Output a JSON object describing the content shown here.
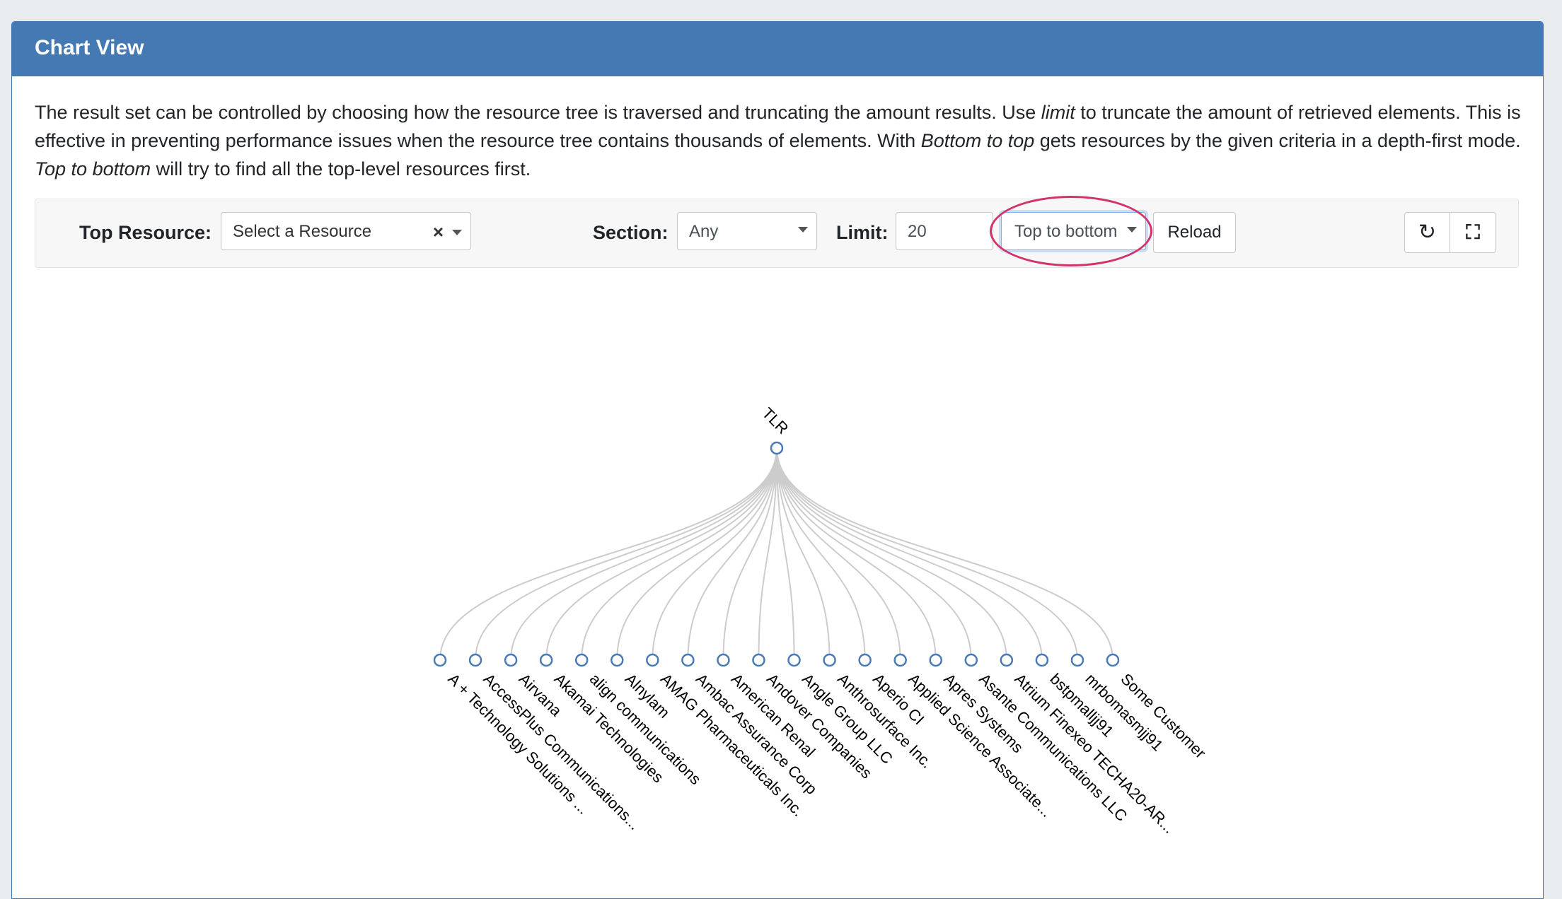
{
  "panel": {
    "title": "Chart View"
  },
  "description": {
    "p1": "The result set can be controlled by choosing how the resource tree is traversed and truncating the amount results. Use ",
    "limit_em": "limit",
    "p2": " to truncate the amount of retrieved elements. This is effective in preventing performance issues when the resource tree contains thousands of elements. With ",
    "btt_em": "Bottom to top",
    "p3": " gets resources by the given criteria in a depth-first mode. ",
    "ttb_em": "Top to bottom",
    "p4": " will try to find all the top-level resources first."
  },
  "toolbar": {
    "top_resource_label": "Top Resource:",
    "top_resource_placeholder": "Select a Resource",
    "clear_glyph": "×",
    "section_label": "Section:",
    "section_value": "Any",
    "limit_label": "Limit:",
    "limit_value": "20",
    "traversal_value": "Top to bottom",
    "reload_label": "Reload",
    "refresh_icon": "refresh-icon",
    "fullscreen_icon": "expand-icon"
  },
  "tree": {
    "root": "TLR",
    "children": [
      "A + Technology Solutions ...",
      "AccessPlus Communications...",
      "Airvana",
      "Akamai Technologies",
      "align communications",
      "Alnylam",
      "AMAG Pharmaceuticals Inc.",
      "Ambac Assurance Corp",
      "American Renal",
      "Andover Companies",
      "Angle Group LLC",
      "Anthrosurface Inc.",
      "Aperio CI",
      "Applied Science Associate...",
      "Apres Systems",
      "Asante Communications LLC",
      "Atrium Finexeo TECHA20-AR...",
      "bstpmalljj91",
      "mrbomasmjj91",
      "Some Customer"
    ],
    "node_color": "#4a7ab5",
    "link_color": "#cccccc"
  },
  "highlight_color": "#d2336f"
}
